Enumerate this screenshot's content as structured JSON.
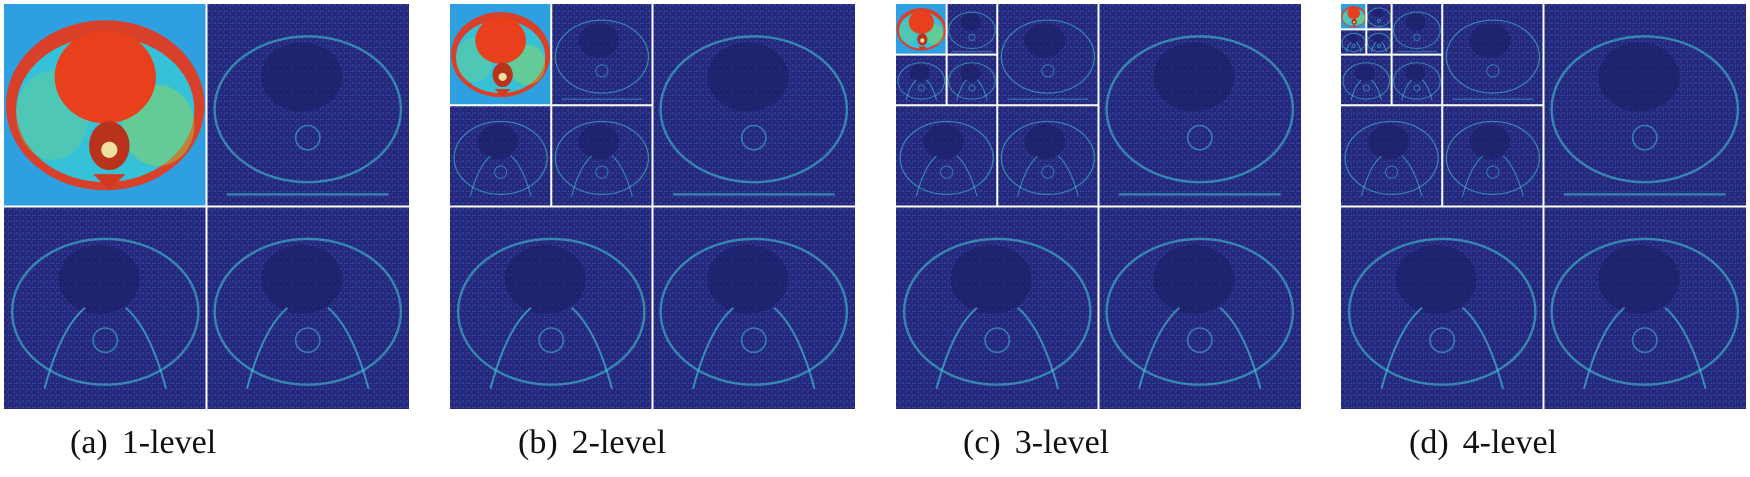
{
  "panels": [
    {
      "id": "a",
      "label": "(a)",
      "title": "1-level",
      "levels": 1
    },
    {
      "id": "b",
      "label": "(b)",
      "title": "2-level",
      "levels": 2
    },
    {
      "id": "c",
      "label": "(c)",
      "title": "3-level",
      "levels": 3
    },
    {
      "id": "d",
      "label": "(d)",
      "title": "4-level",
      "levels": 4
    }
  ],
  "colors": {
    "detail_background": "#24277a",
    "detail_texture": "#3b4fb0",
    "detail_edge": "#46d0d8",
    "approx_background": "#2e9fe0",
    "approx_body": "#35c2d8",
    "approx_heart": "#e8401c",
    "approx_rim": "#d8402a",
    "grid_lines": "#ffffff"
  }
}
